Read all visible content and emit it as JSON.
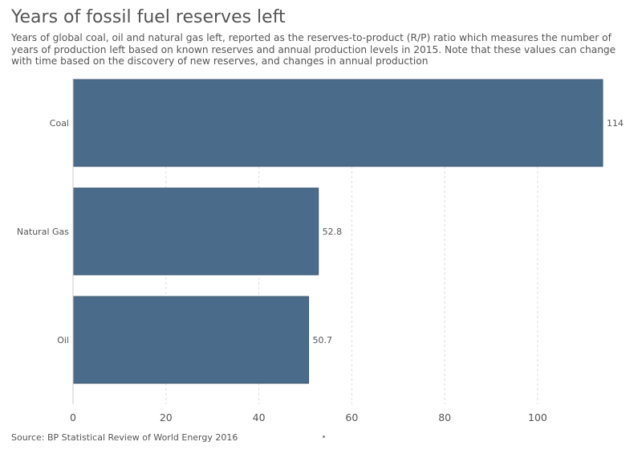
{
  "title": "Years of fossil fuel reserves left",
  "subtitle": "Years of global coal, oil and natural gas left, reported as the reserves-to-product (R/P) ratio which measures the number of years of production left based on known reserves and annual production levels in 2015. Note that these values can change with time based on the discovery of new reserves, and changes in annual production",
  "source": "Source: BP Statistical Review of World Energy 2016",
  "colors": {
    "bar": "#4a6b8a",
    "bar_edge": "#3d5873",
    "grid": "#dddddd",
    "axis": "#cccccc",
    "text": "#555555"
  },
  "chart_data": {
    "type": "bar",
    "orientation": "horizontal",
    "categories": [
      "Coal",
      "Natural Gas",
      "Oil"
    ],
    "values": [
      114,
      52.8,
      50.7
    ],
    "value_labels": [
      "114",
      "52.8",
      "50.7"
    ],
    "title": "Years of fossil fuel reserves left",
    "xlabel": "",
    "ylabel": "",
    "xlim": [
      0,
      114
    ],
    "x_ticks": [
      0,
      20,
      40,
      60,
      80,
      100
    ],
    "grid": true
  }
}
